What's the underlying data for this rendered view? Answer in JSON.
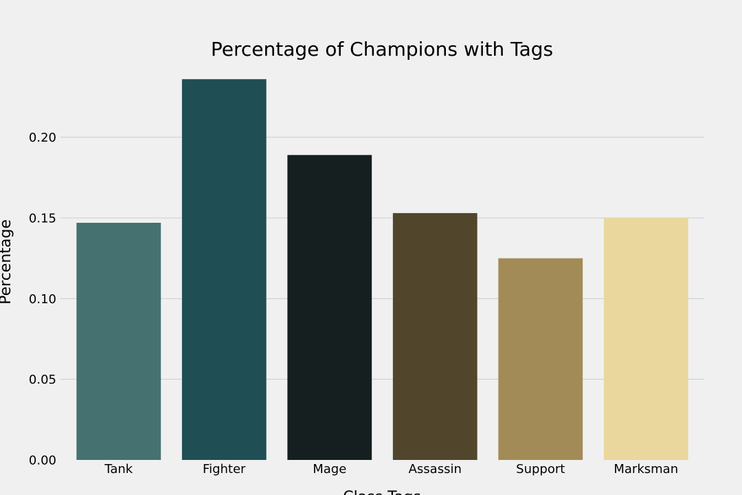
{
  "chart_data": {
    "type": "bar",
    "title": "Percentage of Champions with Tags",
    "xlabel": "Class Tags",
    "ylabel": "Percentage",
    "categories": [
      "Tank",
      "Fighter",
      "Mage",
      "Assassin",
      "Support",
      "Marksman"
    ],
    "values": [
      0.147,
      0.236,
      0.189,
      0.153,
      0.125,
      0.15
    ],
    "colors": [
      "#457270",
      "#1f4f55",
      "#151f1f",
      "#51462c",
      "#a38b57",
      "#ead79e"
    ],
    "yticks": [
      "0.00",
      "0.05",
      "0.10",
      "0.15",
      "0.20"
    ],
    "ylim": [
      0,
      0.2365
    ],
    "grid": "y",
    "background": "#f0f0f0"
  }
}
